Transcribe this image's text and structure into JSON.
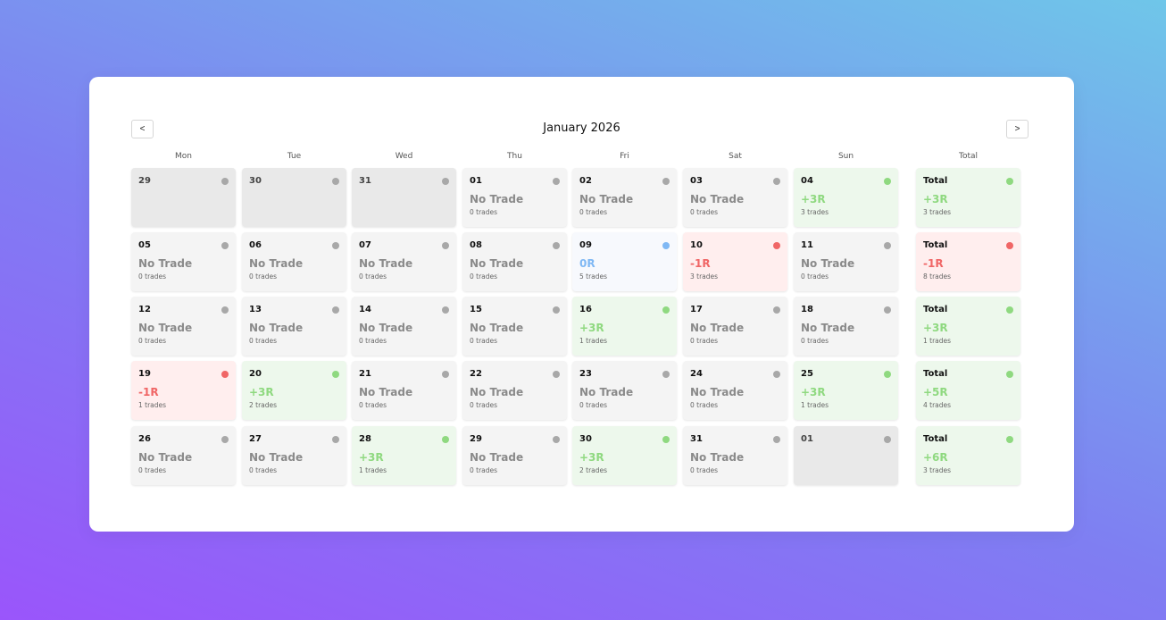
{
  "header": {
    "title": "January 2026",
    "prev_label": "<",
    "next_label": ">"
  },
  "weekdays": [
    "Mon",
    "Tue",
    "Wed",
    "Thu",
    "Fri",
    "Sat",
    "Sun"
  ],
  "total_header": "Total",
  "colors": {
    "win": "#8fd980",
    "loss": "#f06666",
    "flat": "#7fb8f4",
    "neutral": "#a8a8a8"
  },
  "weeks": [
    {
      "days": [
        {
          "day": "29",
          "outside": true
        },
        {
          "day": "30",
          "outside": true
        },
        {
          "day": "31",
          "outside": true
        },
        {
          "day": "01",
          "result": "No Trade",
          "trades": "0 trades",
          "status": "neutral"
        },
        {
          "day": "02",
          "result": "No Trade",
          "trades": "0 trades",
          "status": "neutral"
        },
        {
          "day": "03",
          "result": "No Trade",
          "trades": "0 trades",
          "status": "neutral"
        },
        {
          "day": "04",
          "result": "+3R",
          "trades": "3 trades",
          "status": "win"
        }
      ],
      "total": {
        "label": "Total",
        "result": "+3R",
        "trades": "3 trades",
        "status": "win"
      }
    },
    {
      "days": [
        {
          "day": "05",
          "result": "No Trade",
          "trades": "0 trades",
          "status": "neutral"
        },
        {
          "day": "06",
          "result": "No Trade",
          "trades": "0 trades",
          "status": "neutral"
        },
        {
          "day": "07",
          "result": "No Trade",
          "trades": "0 trades",
          "status": "neutral"
        },
        {
          "day": "08",
          "result": "No Trade",
          "trades": "0 trades",
          "status": "neutral"
        },
        {
          "day": "09",
          "result": "0R",
          "trades": "5 trades",
          "status": "flat"
        },
        {
          "day": "10",
          "result": "-1R",
          "trades": "3 trades",
          "status": "loss"
        },
        {
          "day": "11",
          "result": "No Trade",
          "trades": "0 trades",
          "status": "neutral"
        }
      ],
      "total": {
        "label": "Total",
        "result": "-1R",
        "trades": "8 trades",
        "status": "loss"
      }
    },
    {
      "days": [
        {
          "day": "12",
          "result": "No Trade",
          "trades": "0 trades",
          "status": "neutral"
        },
        {
          "day": "13",
          "result": "No Trade",
          "trades": "0 trades",
          "status": "neutral"
        },
        {
          "day": "14",
          "result": "No Trade",
          "trades": "0 trades",
          "status": "neutral"
        },
        {
          "day": "15",
          "result": "No Trade",
          "trades": "0 trades",
          "status": "neutral"
        },
        {
          "day": "16",
          "result": "+3R",
          "trades": "1 trades",
          "status": "win"
        },
        {
          "day": "17",
          "result": "No Trade",
          "trades": "0 trades",
          "status": "neutral"
        },
        {
          "day": "18",
          "result": "No Trade",
          "trades": "0 trades",
          "status": "neutral"
        }
      ],
      "total": {
        "label": "Total",
        "result": "+3R",
        "trades": "1 trades",
        "status": "win"
      }
    },
    {
      "days": [
        {
          "day": "19",
          "result": "-1R",
          "trades": "1 trades",
          "status": "loss"
        },
        {
          "day": "20",
          "result": "+3R",
          "trades": "2 trades",
          "status": "win"
        },
        {
          "day": "21",
          "result": "No Trade",
          "trades": "0 trades",
          "status": "neutral"
        },
        {
          "day": "22",
          "result": "No Trade",
          "trades": "0 trades",
          "status": "neutral"
        },
        {
          "day": "23",
          "result": "No Trade",
          "trades": "0 trades",
          "status": "neutral"
        },
        {
          "day": "24",
          "result": "No Trade",
          "trades": "0 trades",
          "status": "neutral"
        },
        {
          "day": "25",
          "result": "+3R",
          "trades": "1 trades",
          "status": "win"
        }
      ],
      "total": {
        "label": "Total",
        "result": "+5R",
        "trades": "4 trades",
        "status": "win"
      }
    },
    {
      "days": [
        {
          "day": "26",
          "result": "No Trade",
          "trades": "0 trades",
          "status": "neutral"
        },
        {
          "day": "27",
          "result": "No Trade",
          "trades": "0 trades",
          "status": "neutral"
        },
        {
          "day": "28",
          "result": "+3R",
          "trades": "1 trades",
          "status": "win"
        },
        {
          "day": "29",
          "result": "No Trade",
          "trades": "0 trades",
          "status": "neutral"
        },
        {
          "day": "30",
          "result": "+3R",
          "trades": "2 trades",
          "status": "win"
        },
        {
          "day": "31",
          "result": "No Trade",
          "trades": "0 trades",
          "status": "neutral"
        },
        {
          "day": "01",
          "outside": true
        }
      ],
      "total": {
        "label": "Total",
        "result": "+6R",
        "trades": "3 trades",
        "status": "win"
      }
    }
  ]
}
